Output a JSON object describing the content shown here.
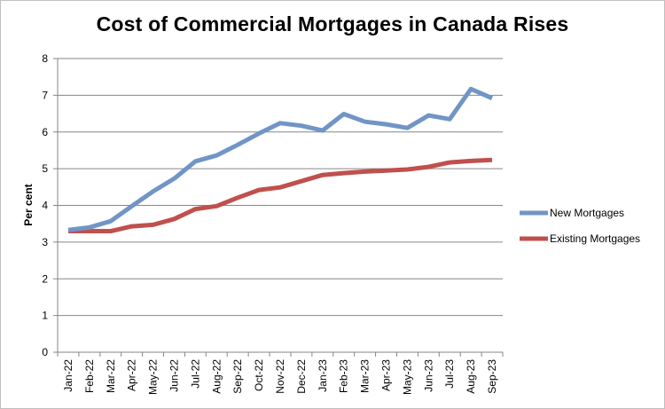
{
  "chart_data": {
    "type": "line",
    "title": "Cost of Commercial Mortgages in Canada Rises",
    "xlabel": "",
    "ylabel": "Per cent",
    "ylim": [
      0,
      8
    ],
    "yticks": [
      0,
      1,
      2,
      3,
      4,
      5,
      6,
      7,
      8
    ],
    "grid": "horizontal",
    "legend_position": "right",
    "categories": [
      "Jan-22",
      "Feb-22",
      "Mar-22",
      "Apr-22",
      "May-22",
      "Jun-22",
      "Jul-22",
      "Aug-22",
      "Sep-22",
      "Oct-22",
      "Nov-22",
      "Dec-22",
      "Jan-23",
      "Feb-23",
      "Mar-23",
      "Apr-23",
      "May-23",
      "Jun-23",
      "Jul-23",
      "Aug-23",
      "Sep-23"
    ],
    "series": [
      {
        "name": "New Mortgages",
        "color": "#7095C6",
        "values": [
          3.33,
          3.4,
          3.57,
          3.98,
          4.38,
          4.73,
          5.2,
          5.36,
          5.65,
          5.96,
          6.24,
          6.17,
          6.04,
          6.49,
          6.28,
          6.21,
          6.11,
          6.45,
          6.35,
          7.17,
          6.92
        ]
      },
      {
        "name": "Existing Mortgages",
        "color": "#C0504D",
        "values": [
          3.3,
          3.3,
          3.3,
          3.43,
          3.47,
          3.63,
          3.9,
          3.98,
          4.21,
          4.42,
          4.49,
          4.66,
          4.83,
          4.88,
          4.92,
          4.95,
          4.98,
          5.05,
          5.17,
          5.21,
          5.24
        ]
      }
    ]
  }
}
